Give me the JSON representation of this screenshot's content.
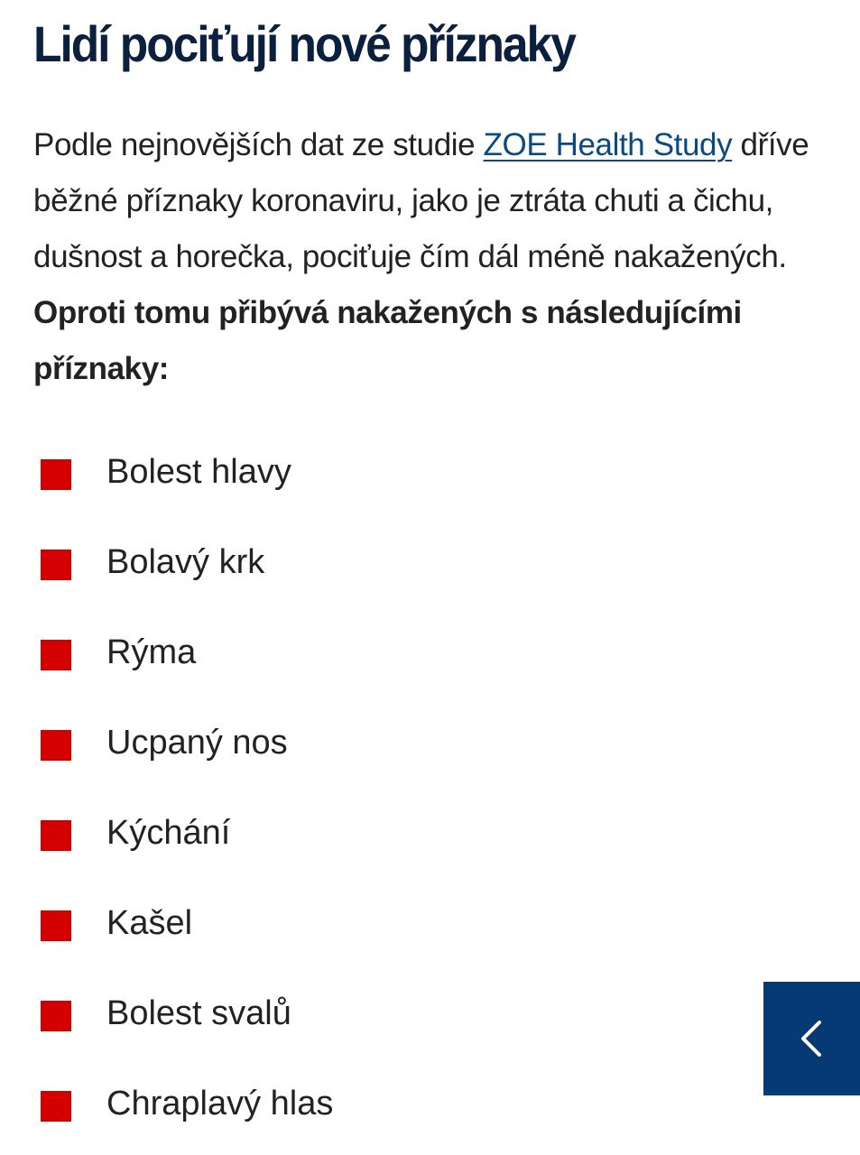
{
  "heading": "Lidí pociťují nové příznaky",
  "paragraph": {
    "text_before": "Podle nejnovějších dat ze studie ",
    "link": "ZOE Health Study",
    "text_after": " dříve běžné příznaky koronaviru, jako je ztráta chuti a čichu, dušnost a horečka, pociťuje čím dál méně nakažených. ",
    "bold": "Oproti tomu přibývá nakažených s následujícími příznaky:"
  },
  "symptoms": [
    "Bolest hlavy",
    "Bolavý krk",
    "Rýma",
    "Ucpaný nos",
    "Kýchání",
    "Kašel",
    "Bolest svalů",
    "Chraplavý hlas"
  ],
  "bullet_icon": "red-square",
  "back_button": {
    "icon": "chevron-left-icon"
  },
  "colors": {
    "heading": "#0b1f3f",
    "link": "#0a4a80",
    "bullet": "#d40000",
    "back_button": "#063a74"
  }
}
